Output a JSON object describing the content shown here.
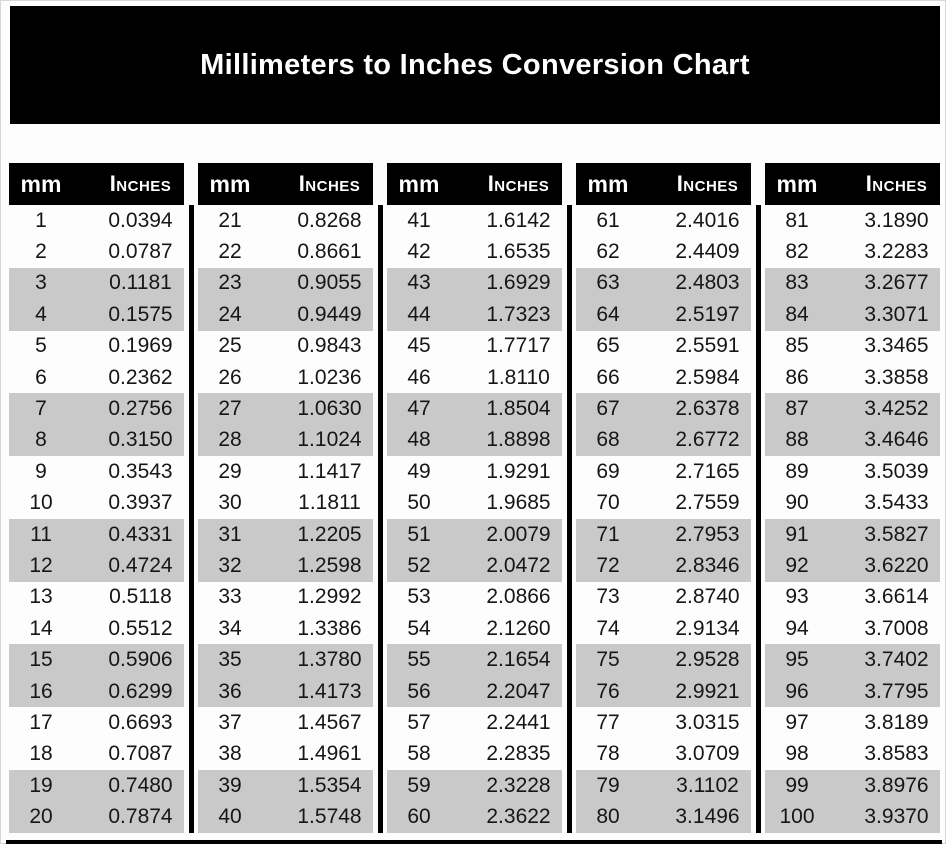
{
  "title": "Millimeters to Inches Conversion Chart",
  "columns": {
    "mm": "mm",
    "inches": "Inches"
  },
  "colors": {
    "banner_bg": "#000000",
    "header_bg": "#000000",
    "header_text": "#ffffff",
    "row_shade": "#c9c9c9",
    "value_text": "#161616"
  },
  "tables": [
    {
      "rows": [
        [
          "1",
          "0.0394"
        ],
        [
          "2",
          "0.0787"
        ],
        [
          "3",
          "0.1181"
        ],
        [
          "4",
          "0.1575"
        ],
        [
          "5",
          "0.1969"
        ],
        [
          "6",
          "0.2362"
        ],
        [
          "7",
          "0.2756"
        ],
        [
          "8",
          "0.3150"
        ],
        [
          "9",
          "0.3543"
        ],
        [
          "10",
          "0.3937"
        ],
        [
          "11",
          "0.4331"
        ],
        [
          "12",
          "0.4724"
        ],
        [
          "13",
          "0.5118"
        ],
        [
          "14",
          "0.5512"
        ],
        [
          "15",
          "0.5906"
        ],
        [
          "16",
          "0.6299"
        ],
        [
          "17",
          "0.6693"
        ],
        [
          "18",
          "0.7087"
        ],
        [
          "19",
          "0.7480"
        ],
        [
          "20",
          "0.7874"
        ]
      ]
    },
    {
      "rows": [
        [
          "21",
          "0.8268"
        ],
        [
          "22",
          "0.8661"
        ],
        [
          "23",
          "0.9055"
        ],
        [
          "24",
          "0.9449"
        ],
        [
          "25",
          "0.9843"
        ],
        [
          "26",
          "1.0236"
        ],
        [
          "27",
          "1.0630"
        ],
        [
          "28",
          "1.1024"
        ],
        [
          "29",
          "1.1417"
        ],
        [
          "30",
          "1.1811"
        ],
        [
          "31",
          "1.2205"
        ],
        [
          "32",
          "1.2598"
        ],
        [
          "33",
          "1.2992"
        ],
        [
          "34",
          "1.3386"
        ],
        [
          "35",
          "1.3780"
        ],
        [
          "36",
          "1.4173"
        ],
        [
          "37",
          "1.4567"
        ],
        [
          "38",
          "1.4961"
        ],
        [
          "39",
          "1.5354"
        ],
        [
          "40",
          "1.5748"
        ]
      ]
    },
    {
      "rows": [
        [
          "41",
          "1.6142"
        ],
        [
          "42",
          "1.6535"
        ],
        [
          "43",
          "1.6929"
        ],
        [
          "44",
          "1.7323"
        ],
        [
          "45",
          "1.7717"
        ],
        [
          "46",
          "1.8110"
        ],
        [
          "47",
          "1.8504"
        ],
        [
          "48",
          "1.8898"
        ],
        [
          "49",
          "1.9291"
        ],
        [
          "50",
          "1.9685"
        ],
        [
          "51",
          "2.0079"
        ],
        [
          "52",
          "2.0472"
        ],
        [
          "53",
          "2.0866"
        ],
        [
          "54",
          "2.1260"
        ],
        [
          "55",
          "2.1654"
        ],
        [
          "56",
          "2.2047"
        ],
        [
          "57",
          "2.2441"
        ],
        [
          "58",
          "2.2835"
        ],
        [
          "59",
          "2.3228"
        ],
        [
          "60",
          "2.3622"
        ]
      ]
    },
    {
      "rows": [
        [
          "61",
          "2.4016"
        ],
        [
          "62",
          "2.4409"
        ],
        [
          "63",
          "2.4803"
        ],
        [
          "64",
          "2.5197"
        ],
        [
          "65",
          "2.5591"
        ],
        [
          "66",
          "2.5984"
        ],
        [
          "67",
          "2.6378"
        ],
        [
          "68",
          "2.6772"
        ],
        [
          "69",
          "2.7165"
        ],
        [
          "70",
          "2.7559"
        ],
        [
          "71",
          "2.7953"
        ],
        [
          "72",
          "2.8346"
        ],
        [
          "73",
          "2.8740"
        ],
        [
          "74",
          "2.9134"
        ],
        [
          "75",
          "2.9528"
        ],
        [
          "76",
          "2.9921"
        ],
        [
          "77",
          "3.0315"
        ],
        [
          "78",
          "3.0709"
        ],
        [
          "79",
          "3.1102"
        ],
        [
          "80",
          "3.1496"
        ]
      ]
    },
    {
      "rows": [
        [
          "81",
          "3.1890"
        ],
        [
          "82",
          "3.2283"
        ],
        [
          "83",
          "3.2677"
        ],
        [
          "84",
          "3.3071"
        ],
        [
          "85",
          "3.3465"
        ],
        [
          "86",
          "3.3858"
        ],
        [
          "87",
          "3.4252"
        ],
        [
          "88",
          "3.4646"
        ],
        [
          "89",
          "3.5039"
        ],
        [
          "90",
          "3.5433"
        ],
        [
          "91",
          "3.5827"
        ],
        [
          "92",
          "3.6220"
        ],
        [
          "93",
          "3.6614"
        ],
        [
          "94",
          "3.7008"
        ],
        [
          "95",
          "3.7402"
        ],
        [
          "96",
          "3.7795"
        ],
        [
          "97",
          "3.8189"
        ],
        [
          "98",
          "3.8583"
        ],
        [
          "99",
          "3.8976"
        ],
        [
          "100",
          "3.9370"
        ]
      ]
    }
  ]
}
